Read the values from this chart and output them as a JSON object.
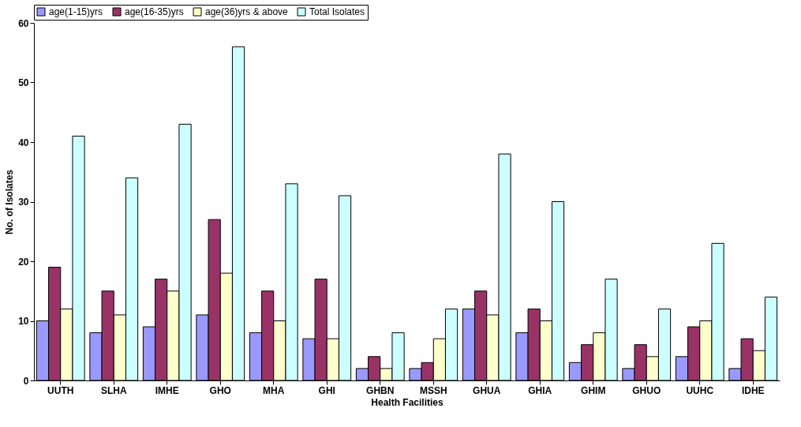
{
  "chart_data": {
    "type": "bar",
    "xlabel": "Health Facilities",
    "ylabel": "No. of Isolates",
    "categories": [
      "UUTH",
      "SLHA",
      "IMHE",
      "GHO",
      "MHA",
      "GHI",
      "GHBN",
      "MSSH",
      "GHUA",
      "GHIA",
      "GHIM",
      "GHUO",
      "UUHC",
      "IDHE"
    ],
    "series": [
      {
        "name": "age(1-15)yrs",
        "color": "#9999ff",
        "values": [
          10,
          8,
          9,
          11,
          8,
          7,
          2,
          2,
          12,
          8,
          3,
          2,
          4,
          2
        ]
      },
      {
        "name": "age(16-35)yrs",
        "color": "#993366",
        "values": [
          19,
          15,
          17,
          27,
          15,
          17,
          4,
          3,
          15,
          12,
          6,
          6,
          9,
          7
        ]
      },
      {
        "name": "age(36)yrs & above",
        "color": "#ffffcc",
        "values": [
          12,
          11,
          15,
          18,
          10,
          7,
          2,
          7,
          11,
          10,
          8,
          4,
          10,
          5
        ]
      },
      {
        "name": "Total Isolates",
        "color": "#ccffff",
        "values": [
          41,
          34,
          43,
          56,
          33,
          31,
          8,
          12,
          38,
          30,
          17,
          12,
          23,
          14
        ]
      }
    ],
    "ylim": [
      0,
      60
    ],
    "yticks": [
      0,
      10,
      20,
      30,
      40,
      50,
      60
    ],
    "grid": false,
    "legend": "top"
  }
}
